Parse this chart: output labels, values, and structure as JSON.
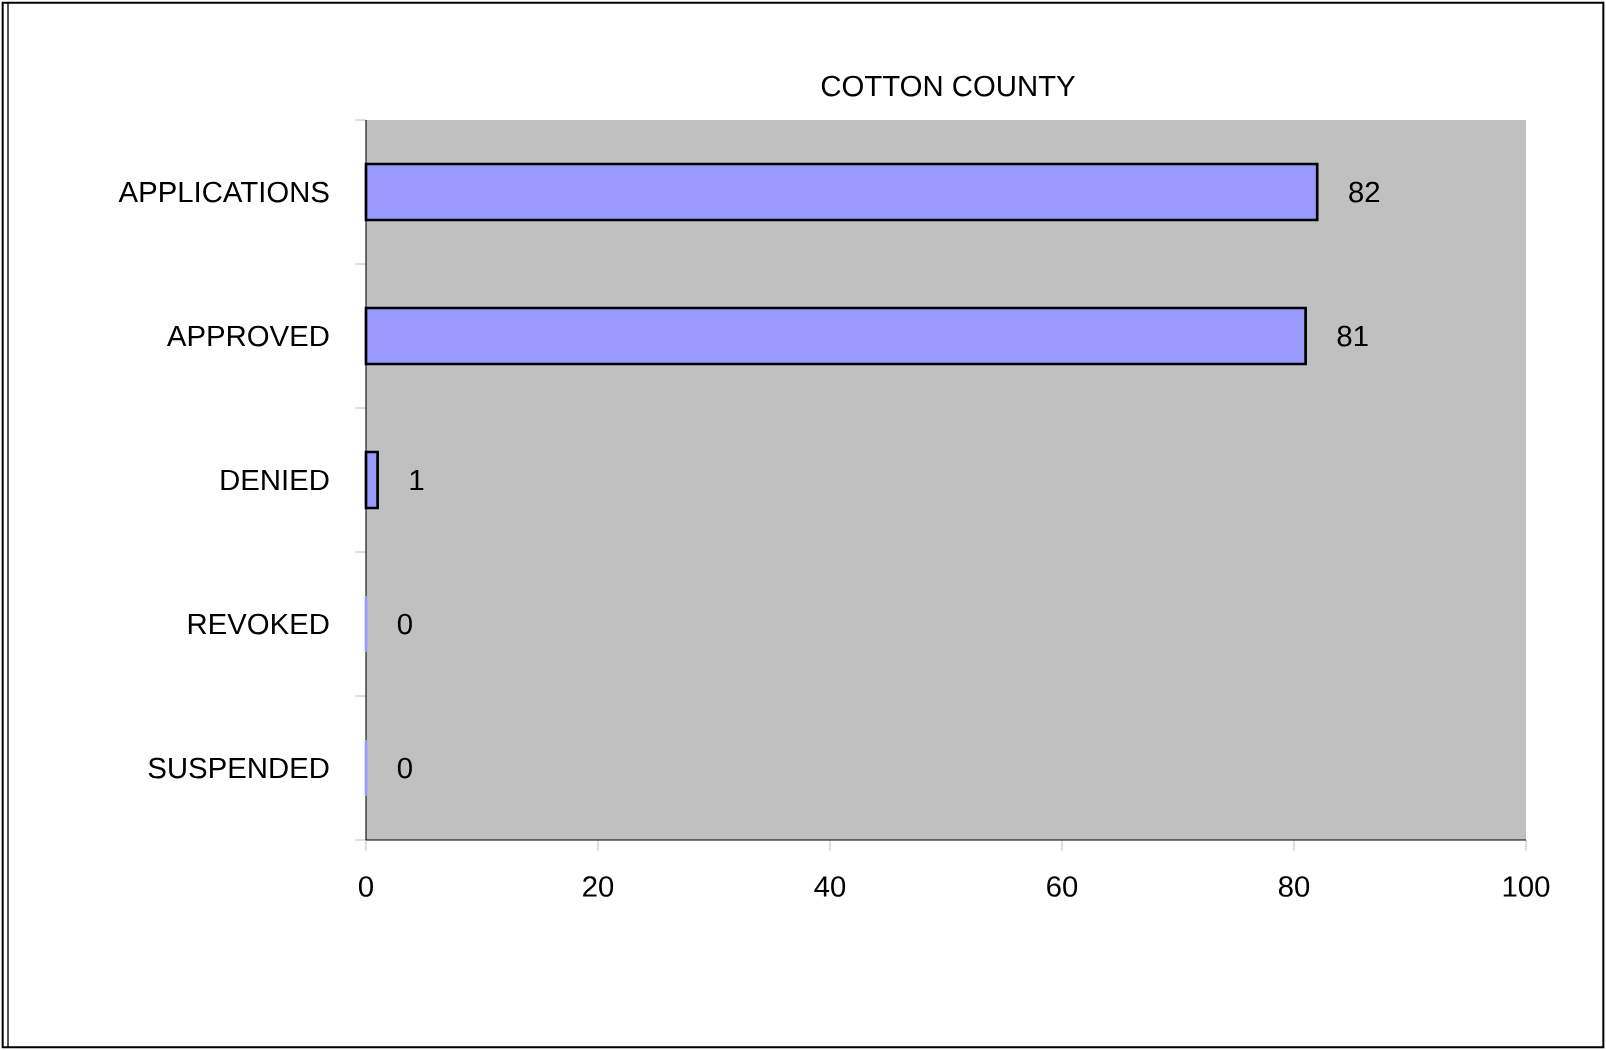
{
  "chart_data": {
    "type": "bar",
    "orientation": "horizontal",
    "title": "COTTON COUNTY",
    "categories": [
      "APPLICATIONS",
      "APPROVED",
      "DENIED",
      "REVOKED",
      "SUSPENDED"
    ],
    "values": [
      82,
      81,
      1,
      0,
      0
    ],
    "color": "#9999ff",
    "xlim": [
      0,
      100
    ],
    "xticks": [
      0,
      20,
      40,
      60,
      80,
      100
    ],
    "data_labels": true
  }
}
